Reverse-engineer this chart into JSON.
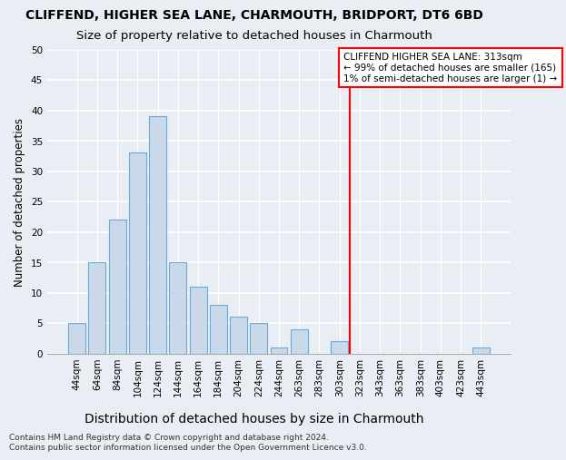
{
  "title": "CLIFFEND, HIGHER SEA LANE, CHARMOUTH, BRIDPORT, DT6 6BD",
  "subtitle": "Size of property relative to detached houses in Charmouth",
  "xlabel": "Distribution of detached houses by size in Charmouth",
  "ylabel": "Number of detached properties",
  "bar_color": "#c9d9ea",
  "bar_edge_color": "#6aaad4",
  "categories": [
    "44sqm",
    "64sqm",
    "84sqm",
    "104sqm",
    "124sqm",
    "144sqm",
    "164sqm",
    "184sqm",
    "204sqm",
    "224sqm",
    "244sqm",
    "263sqm",
    "283sqm",
    "303sqm",
    "323sqm",
    "343sqm",
    "363sqm",
    "383sqm",
    "403sqm",
    "423sqm",
    "443sqm"
  ],
  "values": [
    5,
    15,
    22,
    33,
    39,
    15,
    11,
    8,
    6,
    5,
    1,
    4,
    0,
    2,
    0,
    0,
    0,
    0,
    0,
    0,
    1
  ],
  "ylim": [
    0,
    50
  ],
  "yticks": [
    0,
    5,
    10,
    15,
    20,
    25,
    30,
    35,
    40,
    45,
    50
  ],
  "vline_x_idx": 13.5,
  "annotation_title": "CLIFFEND HIGHER SEA LANE: 313sqm",
  "annotation_line1": "← 99% of detached houses are smaller (165)",
  "annotation_line2": "1% of semi-detached houses are larger (1) →",
  "footer_line1": "Contains HM Land Registry data © Crown copyright and database right 2024.",
  "footer_line2": "Contains public sector information licensed under the Open Government Licence v3.0.",
  "background_color": "#e8eef4",
  "grid_color": "#ffffff",
  "title_fontsize": 10,
  "subtitle_fontsize": 9.5,
  "xlabel_fontsize": 10,
  "ylabel_fontsize": 8.5,
  "tick_fontsize": 7.5,
  "annotation_fontsize": 7.5,
  "footer_fontsize": 6.5
}
